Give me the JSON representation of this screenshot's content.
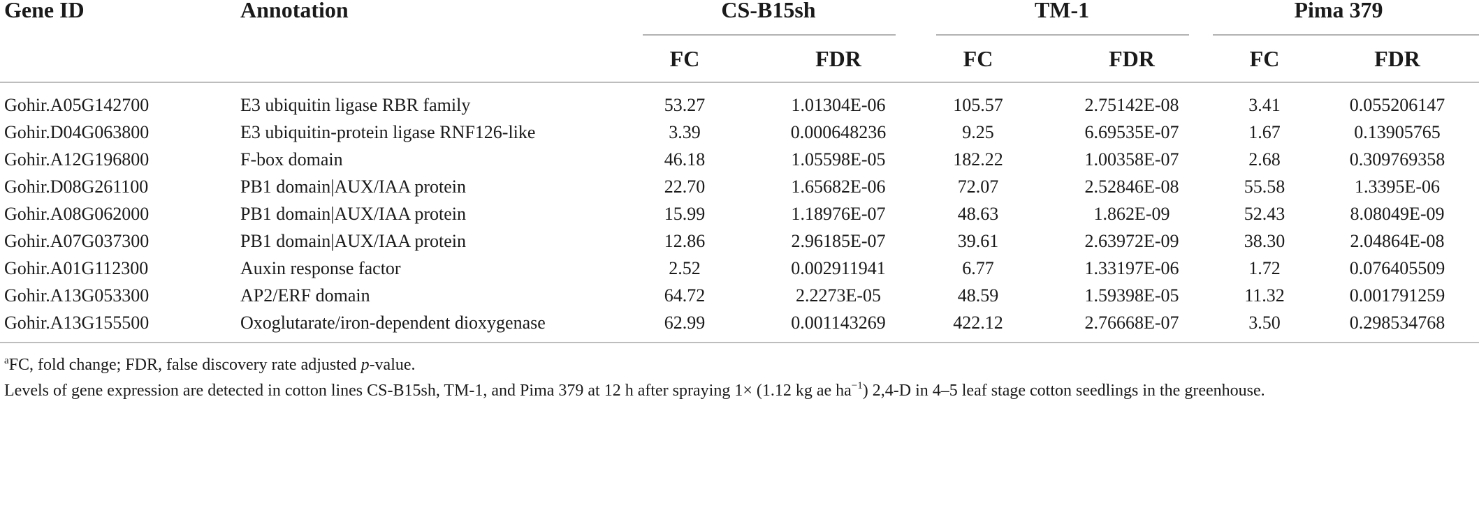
{
  "table": {
    "headers": {
      "gene_id": "Gene ID",
      "annotation": "Annotation",
      "groups": [
        "CS-B15sh",
        "TM-1",
        "Pima 379"
      ],
      "sub": [
        "FC",
        "FDR",
        "FC",
        "FDR",
        "FC",
        "FDR"
      ]
    },
    "rows": [
      {
        "gene_id": "Gohir.A05G142700",
        "annotation": "E3 ubiquitin ligase RBR family",
        "cs_fc": "53.27",
        "cs_fdr": "1.01304E-06",
        "tm_fc": "105.57",
        "tm_fdr": "2.75142E-08",
        "pima_fc": "3.41",
        "pima_fdr": "0.055206147"
      },
      {
        "gene_id": "Gohir.D04G063800",
        "annotation": "E3 ubiquitin-protein ligase RNF126-like",
        "cs_fc": "3.39",
        "cs_fdr": "0.000648236",
        "tm_fc": "9.25",
        "tm_fdr": "6.69535E-07",
        "pima_fc": "1.67",
        "pima_fdr": "0.13905765"
      },
      {
        "gene_id": "Gohir.A12G196800",
        "annotation": "F-box domain",
        "cs_fc": "46.18",
        "cs_fdr": "1.05598E-05",
        "tm_fc": "182.22",
        "tm_fdr": "1.00358E-07",
        "pima_fc": "2.68",
        "pima_fdr": "0.309769358"
      },
      {
        "gene_id": "Gohir.D08G261100",
        "annotation": "PB1 domain|AUX/IAA protein",
        "cs_fc": "22.70",
        "cs_fdr": "1.65682E-06",
        "tm_fc": "72.07",
        "tm_fdr": "2.52846E-08",
        "pima_fc": "55.58",
        "pima_fdr": "1.3395E-06"
      },
      {
        "gene_id": "Gohir.A08G062000",
        "annotation": "PB1 domain|AUX/IAA protein",
        "cs_fc": "15.99",
        "cs_fdr": "1.18976E-07",
        "tm_fc": "48.63",
        "tm_fdr": "1.862E-09",
        "pima_fc": "52.43",
        "pima_fdr": "8.08049E-09"
      },
      {
        "gene_id": "Gohir.A07G037300",
        "annotation": "PB1 domain|AUX/IAA protein",
        "cs_fc": "12.86",
        "cs_fdr": "2.96185E-07",
        "tm_fc": "39.61",
        "tm_fdr": "2.63972E-09",
        "pima_fc": "38.30",
        "pima_fdr": "2.04864E-08"
      },
      {
        "gene_id": "Gohir.A01G112300",
        "annotation": "Auxin response factor",
        "cs_fc": "2.52",
        "cs_fdr": "0.002911941",
        "tm_fc": "6.77",
        "tm_fdr": "1.33197E-06",
        "pima_fc": "1.72",
        "pima_fdr": "0.076405509"
      },
      {
        "gene_id": "Gohir.A13G053300",
        "annotation": "AP2/ERF domain",
        "cs_fc": "64.72",
        "cs_fdr": "2.2273E-05",
        "tm_fc": "48.59",
        "tm_fdr": "1.59398E-05",
        "pima_fc": "11.32",
        "pima_fdr": "0.001791259"
      },
      {
        "gene_id": "Gohir.A13G155500",
        "annotation": "Oxoglutarate/iron-dependent dioxygenase",
        "cs_fc": "62.99",
        "cs_fdr": "0.001143269",
        "tm_fc": "422.12",
        "tm_fdr": "2.76668E-07",
        "pima_fc": "3.50",
        "pima_fdr": "0.298534768"
      }
    ]
  },
  "footnotes": {
    "note_a": {
      "marker": "a",
      "text_before": "FC, fold change; FDR, false discovery rate adjusted ",
      "italic": "p",
      "text_after": "-value."
    },
    "note_b": {
      "text_before": "Levels of gene expression are detected in cotton lines CS-B15sh, TM-1, and Pima 379 at 12 h after spraying 1× (1.12 kg ae ha",
      "superscript": "−1",
      "text_after": ") 2,4-D in 4–5 leaf stage cotton seedlings in the greenhouse."
    }
  }
}
